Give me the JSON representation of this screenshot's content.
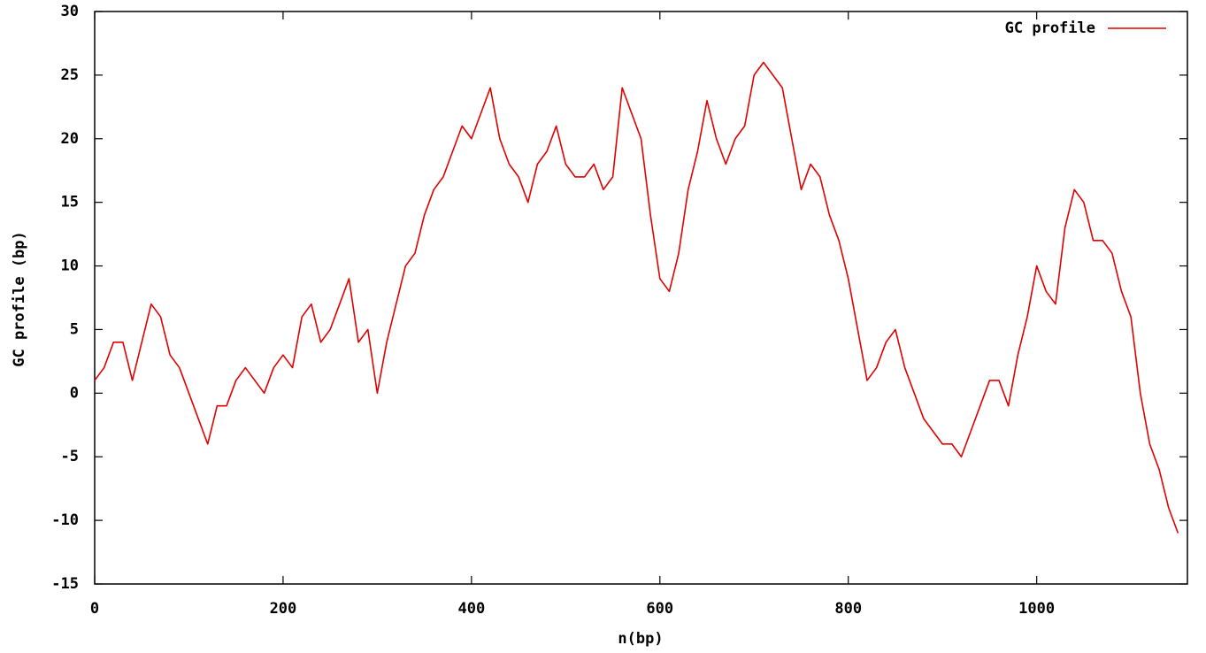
{
  "chart_data": {
    "type": "line",
    "xlabel": "n(bp)",
    "ylabel": "GC profile (bp)",
    "x": [
      0,
      10,
      20,
      30,
      40,
      50,
      60,
      70,
      80,
      90,
      100,
      110,
      120,
      130,
      140,
      150,
      160,
      170,
      180,
      190,
      200,
      210,
      220,
      230,
      240,
      250,
      260,
      270,
      280,
      290,
      300,
      310,
      320,
      330,
      340,
      350,
      360,
      370,
      380,
      390,
      400,
      410,
      420,
      430,
      440,
      450,
      460,
      470,
      480,
      490,
      500,
      510,
      520,
      530,
      540,
      550,
      560,
      570,
      580,
      590,
      600,
      610,
      620,
      630,
      640,
      650,
      660,
      670,
      680,
      690,
      700,
      710,
      720,
      730,
      740,
      750,
      760,
      770,
      780,
      790,
      800,
      810,
      820,
      830,
      840,
      850,
      860,
      870,
      880,
      890,
      900,
      910,
      920,
      930,
      940,
      950,
      960,
      970,
      980,
      990,
      1000,
      1010,
      1020,
      1030,
      1040,
      1050,
      1060,
      1070,
      1080,
      1090,
      1100,
      1110,
      1120,
      1130,
      1140,
      1150
    ],
    "series": [
      {
        "name": "GC profile",
        "color": "#e00000",
        "values": [
          1,
          2,
          4,
          4,
          1,
          4,
          7,
          6,
          3,
          2,
          0,
          -2,
          -4,
          -1,
          -1,
          1,
          2,
          1,
          0,
          2,
          3,
          2,
          6,
          7,
          4,
          5,
          7,
          9,
          4,
          5,
          0,
          4,
          7,
          10,
          11,
          14,
          16,
          17,
          19,
          21,
          20,
          22,
          24,
          20,
          18,
          17,
          15,
          18,
          19,
          21,
          18,
          17,
          17,
          18,
          16,
          17,
          24,
          22,
          20,
          14,
          9,
          8,
          11,
          16,
          19,
          23,
          20,
          18,
          20,
          21,
          25,
          26,
          25,
          24,
          20,
          16,
          18,
          17,
          14,
          12,
          9,
          5,
          1,
          2,
          4,
          5,
          2,
          0,
          -2,
          -3,
          -4,
          -4,
          -5,
          -3,
          -1,
          1,
          1,
          -1,
          3,
          6,
          10,
          8,
          7,
          13,
          16,
          15,
          12,
          12,
          11,
          8,
          6,
          0,
          -4,
          -6,
          -9,
          -11
        ]
      }
    ],
    "xlim": [
      0,
      1160
    ],
    "ylim": [
      -15,
      30
    ],
    "xticks": [
      0,
      200,
      400,
      600,
      800,
      1000
    ],
    "yticks": [
      -15,
      -10,
      -5,
      0,
      5,
      10,
      15,
      20,
      25,
      30
    ],
    "legend": "upper-right"
  }
}
